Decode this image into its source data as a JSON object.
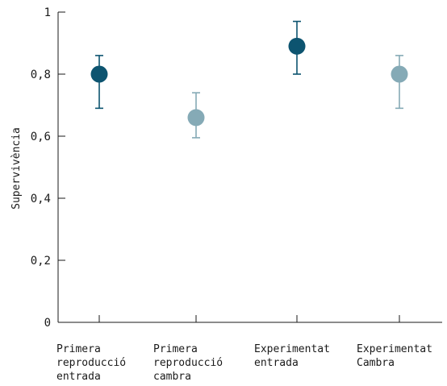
{
  "chart_data": {
    "type": "scatter",
    "title": "",
    "xlabel": "",
    "ylabel": "Supervivència",
    "ylim": [
      0,
      1
    ],
    "grid": false,
    "y_ticks": [
      "0",
      "0,2",
      "0,4",
      "0,6",
      "0,8",
      "1"
    ],
    "y_tick_values": [
      0,
      0.2,
      0.4,
      0.6,
      0.8,
      1.0
    ],
    "categories": [
      [
        "Primera",
        "reproducció",
        "entrada"
      ],
      [
        "Primera",
        "reproducció",
        "cambra"
      ],
      [
        "Experimentat",
        "entrada"
      ],
      [
        "Experimentat",
        "Cambra"
      ]
    ],
    "points": [
      {
        "value": 0.8,
        "err_low": 0.69,
        "err_high": 0.86,
        "color": "#0d5470"
      },
      {
        "value": 0.66,
        "err_low": 0.595,
        "err_high": 0.74,
        "color": "#85aab6"
      },
      {
        "value": 0.89,
        "err_low": 0.8,
        "err_high": 0.97,
        "color": "#0d5470"
      },
      {
        "value": 0.8,
        "err_low": 0.69,
        "err_high": 0.86,
        "color": "#85aab6"
      }
    ]
  }
}
